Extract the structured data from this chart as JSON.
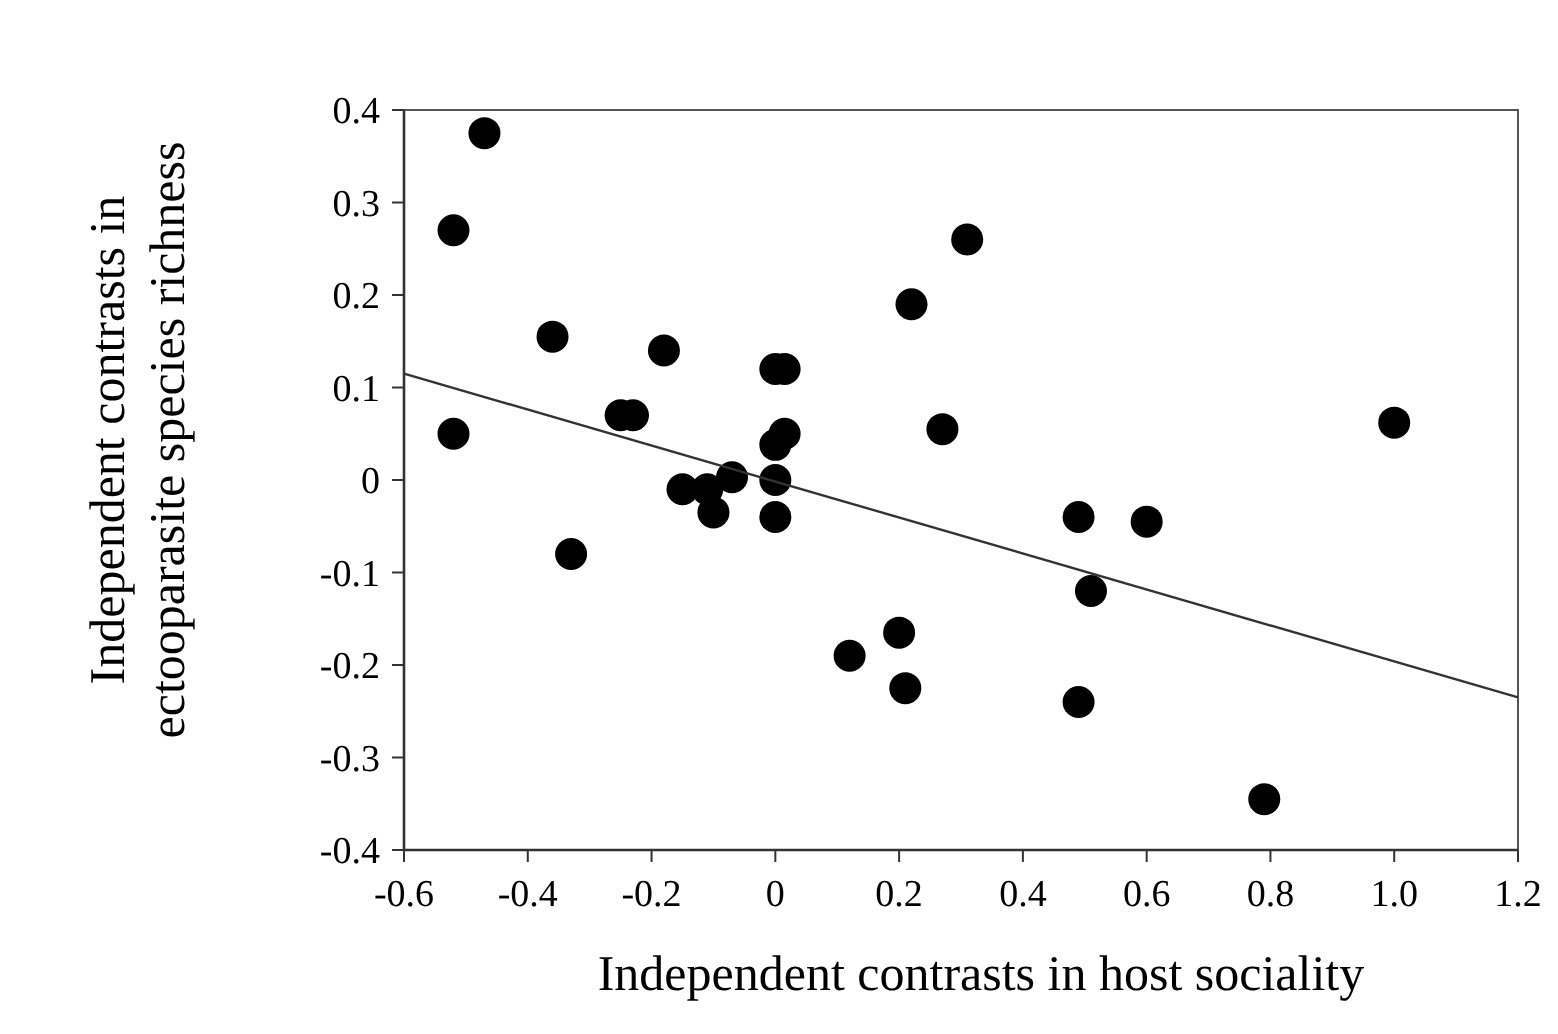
{
  "chart_data": {
    "type": "scatter",
    "xlabel": "Independent contrasts in host sociality",
    "ylabel": "Independent contrasts in\nectooparasite species richness",
    "xlim": [
      -0.6,
      1.2
    ],
    "xticks": [
      -0.6,
      -0.4,
      -0.2,
      0,
      0.2,
      0.4,
      0.6,
      0.8,
      {
        "value": 1,
        "label": "1.0"
      },
      1.2
    ],
    "ylim": [
      -0.4,
      0.4
    ],
    "yticks": [
      -0.4,
      -0.3,
      -0.2,
      -0.1,
      0,
      0.1,
      0.2,
      0.3,
      0.4
    ],
    "grid": false,
    "marker": "circle",
    "series": [
      {
        "color": "#000000",
        "x": [
          -0.52,
          -0.47,
          -0.52,
          -0.36,
          -0.33,
          -0.18,
          -0.25,
          -0.23,
          -0.15,
          -0.11,
          -0.1,
          -0.07,
          0,
          0.015,
          0,
          0.015,
          0,
          0,
          0.12,
          0.2,
          0.21,
          0.22,
          0.31,
          0.27,
          0.49,
          0.6,
          0.51,
          0.49,
          0.79,
          1.0
        ],
        "values": [
          0.27,
          0.375,
          0.05,
          0.155,
          -0.08,
          0.14,
          0.07,
          0.07,
          -0.01,
          -0.01,
          -0.035,
          0.003,
          0.12,
          0.12,
          0.038,
          0.05,
          0,
          -0.04,
          -0.19,
          -0.165,
          -0.225,
          0.19,
          0.26,
          0.055,
          -0.04,
          -0.045,
          -0.12,
          -0.24,
          -0.345,
          0.062
        ]
      },
      {
        "type": "line",
        "color": "#333333",
        "line_style": "solid",
        "marker": "none",
        "x": [
          -0.6,
          1.2
        ],
        "values": [
          0.115,
          -0.235
        ]
      }
    ]
  }
}
